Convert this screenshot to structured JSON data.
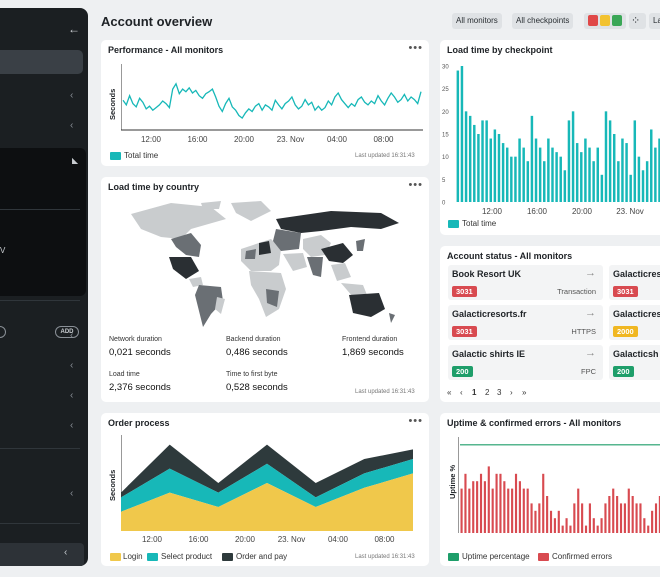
{
  "sidebar": {
    "add_label": "ADD",
    "partial_letter": "V"
  },
  "header": {
    "title": "Account overview",
    "all_monitors": "All monitors",
    "all_checkpoints": "All checkpoints",
    "partial_button": "La"
  },
  "status_colors": {
    "red": "#e04848",
    "yellow": "#f2c230",
    "green": "#3aa757"
  },
  "colors": {
    "teal": "#17b8b8",
    "yellow": "#f0c84b",
    "dark": "#2e3a3c",
    "green": "#1e9e6a",
    "red": "#d84a50",
    "map_dark": "#2a2f33",
    "map_mid": "#6a6f74",
    "map_light": "#c9ccce"
  },
  "performance": {
    "title": "Performance - All monitors",
    "ylabel": "Seconds",
    "legend": "Total time",
    "updated": "Last updated 16:31:43",
    "chart_data": {
      "type": "line",
      "x_ticks": [
        "12:00",
        "16:00",
        "20:00",
        "23. Nov",
        "04:00",
        "08:00"
      ],
      "series": [
        {
          "name": "Total time",
          "color": "#17b8b8",
          "values": [
            0.45,
            0.38,
            0.52,
            0.4,
            0.35,
            0.48,
            0.42,
            0.32,
            0.36,
            0.3,
            0.34,
            0.38,
            0.44,
            0.4,
            0.34,
            0.62,
            0.7,
            0.55,
            0.62,
            0.58,
            0.64,
            0.56,
            0.6,
            0.52,
            0.48,
            0.55,
            0.58,
            0.62,
            0.5,
            0.36,
            0.28,
            0.4,
            0.48,
            0.35,
            0.3,
            0.22,
            0.18,
            0.26,
            0.32,
            0.28,
            0.36,
            0.4,
            0.3,
            0.38,
            0.35,
            0.3,
            0.45,
            0.38,
            0.32,
            0.4,
            0.44,
            0.5,
            0.38,
            0.32,
            0.36,
            0.46,
            0.38,
            0.42,
            0.3,
            0.36,
            0.3,
            0.34,
            0.44,
            0.38,
            0.5,
            0.56,
            0.46,
            0.4,
            0.34,
            0.4,
            0.36,
            0.46,
            0.5,
            0.42,
            0.38,
            0.44,
            0.4,
            0.52,
            0.44,
            0.38,
            0.48,
            0.56,
            0.5,
            0.42,
            0.46,
            0.54,
            0.44,
            0.5,
            0.46,
            0.4,
            0.58
          ]
        }
      ]
    }
  },
  "checkpoint": {
    "title": "Load time by checkpoint",
    "legend": "Total time",
    "chart_data": {
      "type": "bar",
      "x_ticks": [
        "12:00",
        "16:00",
        "20:00",
        "23. Nov"
      ],
      "y_ticks": [
        30,
        25,
        20,
        15,
        10,
        5,
        0
      ],
      "ylim": [
        0,
        30
      ],
      "series": [
        {
          "name": "Total time",
          "values": [
            29,
            30,
            20,
            19,
            17,
            15,
            18,
            18,
            14,
            16,
            15,
            13,
            12,
            10,
            10,
            14,
            12,
            9,
            19,
            14,
            12,
            9,
            14,
            12,
            11,
            10,
            7,
            18,
            20,
            13,
            11,
            14,
            12,
            9,
            12,
            6,
            20,
            18,
            15,
            9,
            14,
            13,
            6,
            18,
            10,
            7,
            9,
            16,
            12,
            14,
            9,
            13
          ]
        }
      ]
    }
  },
  "country": {
    "title": "Load time by country",
    "updated": "Last updated 16:31:43",
    "stats": [
      {
        "label": "Network duration",
        "value": "0,021 seconds"
      },
      {
        "label": "Backend duration",
        "value": "0,486 seconds"
      },
      {
        "label": "Frontend duration",
        "value": "1,869 seconds"
      },
      {
        "label": "Load time",
        "value": "2,376 seconds"
      },
      {
        "label": "Time to first byte",
        "value": "0,528 seconds"
      }
    ]
  },
  "account_status": {
    "title": "Account status - All monitors",
    "tiles": [
      {
        "name": "Book Resort UK",
        "code": "3031",
        "type": "Transaction",
        "status": "red"
      },
      {
        "name": "Galacticres",
        "code": "3031",
        "type": "",
        "status": "red"
      },
      {
        "name": "Galacticresorts.fr",
        "code": "3031",
        "type": "HTTPS",
        "status": "red"
      },
      {
        "name": "Galacticres",
        "code": "2000",
        "type": "",
        "status": "yellow"
      },
      {
        "name": "Galactic shirts IE",
        "code": "200",
        "type": "FPC",
        "status": "green"
      },
      {
        "name": "Galacticsh",
        "code": "200",
        "type": "",
        "status": "green"
      }
    ],
    "pager": {
      "first": "«",
      "prev": "‹",
      "pages": [
        "1",
        "2",
        "3"
      ],
      "next": "›",
      "last": "»"
    }
  },
  "order": {
    "title": "Order process",
    "ylabel": "Seconds",
    "updated": "Last updated 16:31:43",
    "legend": [
      "Login",
      "Select product",
      "Order and pay"
    ],
    "chart_data": {
      "type": "area",
      "stacked": true,
      "x_ticks": [
        "12:00",
        "16:00",
        "20:00",
        "23. Nov",
        "04:00",
        "08:00"
      ],
      "series": [
        {
          "name": "Login",
          "color": "#f0c84b",
          "values": [
            0.2,
            0.4,
            0.25,
            0.5,
            0.25,
            0.45,
            0.6
          ]
        },
        {
          "name": "Select product",
          "color": "#17b8b8",
          "values": [
            0.15,
            0.25,
            0.15,
            0.2,
            0.1,
            0.15,
            0.15
          ]
        },
        {
          "name": "Order and pay",
          "color": "#2e3a3c",
          "values": [
            0.05,
            0.25,
            0.1,
            0.2,
            0.15,
            0.15,
            0.1
          ]
        }
      ]
    }
  },
  "uptime": {
    "title": "Uptime & confirmed errors - All monitors",
    "ylabel": "Uptime %",
    "legend": [
      "Uptime percentage",
      "Confirmed errors"
    ],
    "chart_data": {
      "type": "bar",
      "series": [
        {
          "name": "Uptime percentage",
          "type": "line",
          "values": [
            0.98,
            0.98,
            0.98,
            0.98,
            0.98,
            0.98,
            0.98,
            0.98,
            0.98,
            0.98,
            0.98,
            0.98,
            0.98,
            0.98,
            0.98,
            0.98,
            0.98,
            0.98,
            0.98,
            0.98,
            0.98,
            0.98,
            0.98,
            0.98,
            0.98,
            0.98,
            0.98,
            0.98,
            0.98,
            0.98,
            0.98,
            0.98,
            0.98,
            0.98,
            0.98,
            0.98,
            0.98,
            0.98,
            0.98,
            0.98,
            0.98,
            0.98,
            0.98,
            0.98,
            0.98,
            0.98,
            0.98,
            0.98,
            0.98,
            0.98,
            0.98,
            0.98,
            0.98,
            0.96
          ]
        },
        {
          "name": "Confirmed errors",
          "type": "bar",
          "values": [
            6,
            8,
            6,
            7,
            7,
            8,
            7,
            9,
            6,
            8,
            8,
            7,
            6,
            6,
            8,
            7,
            6,
            6,
            4,
            3,
            4,
            8,
            5,
            3,
            2,
            3,
            1,
            2,
            1,
            4,
            6,
            4,
            1,
            4,
            2,
            1,
            2,
            4,
            5,
            6,
            5,
            4,
            4,
            6,
            5,
            4,
            4,
            2,
            1,
            3,
            4,
            5,
            6,
            4
          ]
        }
      ]
    }
  }
}
